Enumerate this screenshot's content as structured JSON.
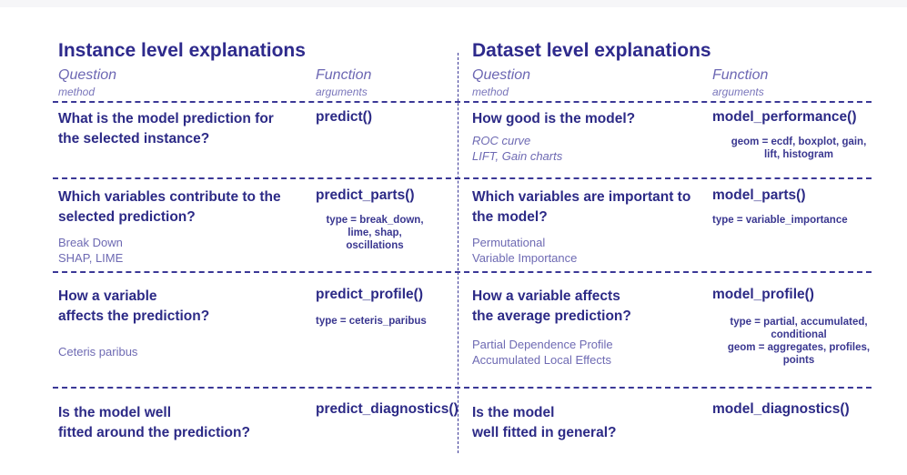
{
  "left": {
    "title": "Instance level explanations",
    "col_question": "Question",
    "col_question_sub": "method",
    "col_function": "Function",
    "col_function_sub": "arguments",
    "rows": [
      {
        "question": "What is the model prediction for the selected instance?",
        "method": "",
        "function": "predict()",
        "args": ""
      },
      {
        "question": "Which variables contribute to the selected prediction?",
        "method": "Break Down\nSHAP, LIME",
        "function": "predict_parts()",
        "args": "type = break_down,\nlime, shap,\noscillations"
      },
      {
        "question": "How a variable\naffects the prediction?",
        "method": "Ceteris paribus",
        "function": "predict_profile()",
        "args": "type = ceteris_paribus"
      },
      {
        "question": "Is the model well\nfitted around the prediction?",
        "method": "",
        "function": "predict_diagnostics()",
        "args": ""
      }
    ]
  },
  "right": {
    "title": "Dataset level explanations",
    "col_question": "Question",
    "col_question_sub": "method",
    "col_function": "Function",
    "col_function_sub": "arguments",
    "rows": [
      {
        "question": "How good is the model?",
        "method": "ROC curve\nLIFT, Gain charts",
        "function": "model_performance()",
        "args": "geom = ecdf, boxplot, gain,\nlift, histogram"
      },
      {
        "question": "Which variables are important to the model?",
        "method": "Permutational\nVariable Importance",
        "function": "model_parts()",
        "args": "type = variable_importance"
      },
      {
        "question": "How a variable affects\nthe average prediction?",
        "method": "Partial Dependence Profile\nAccumulated Local Effects",
        "function": "model_profile()",
        "args": "type = partial, accumulated,\nconditional\ngeom = aggregates, profiles,\npoints"
      },
      {
        "question": "Is the model\nwell fitted in general?",
        "method": "",
        "function": "model_diagnostics()",
        "args": ""
      }
    ]
  },
  "colors": {
    "primary": "#2c2a86",
    "secondary": "#6e6ab3",
    "lines": "#3b3896"
  }
}
